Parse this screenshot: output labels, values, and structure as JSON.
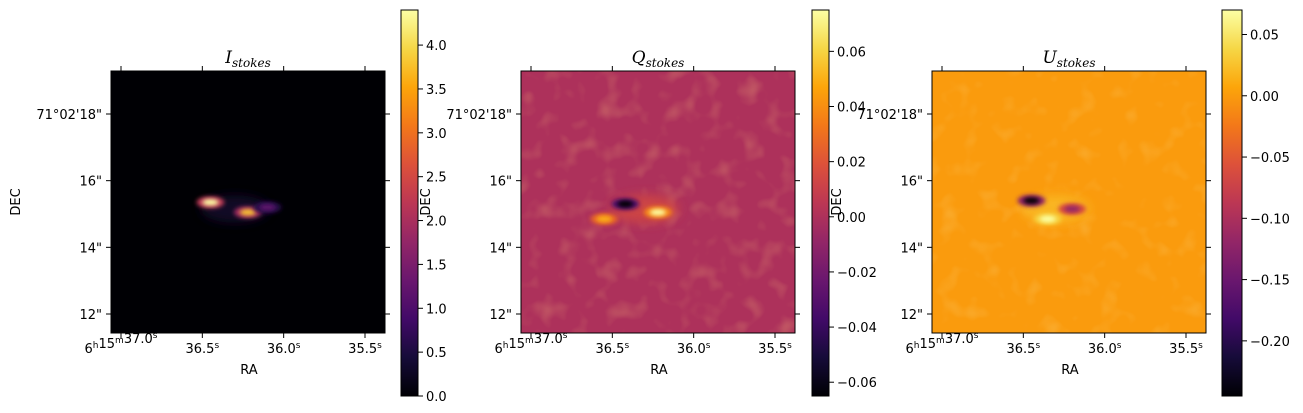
{
  "chart_data": [
    {
      "type": "heatmap",
      "title_symbol": "I",
      "title_sub": "stokes",
      "xlabel": "RA",
      "ylabel": "DEC",
      "colormap": "inferno",
      "background_value": 0.0,
      "x_ticks": [
        "6h15m37.0s",
        "36.5s",
        "36.0s",
        "35.5s"
      ],
      "y_ticks": [
        "71°02'18\"",
        "16\"",
        "14\"",
        "12\""
      ],
      "colorbar": {
        "range": [
          0.0,
          4.4
        ],
        "ticks": [
          "0.0",
          "0.5",
          "1.0",
          "1.5",
          "2.0",
          "2.5",
          "3.0",
          "3.5",
          "4.0"
        ]
      },
      "features": [
        {
          "ra_s": 36.45,
          "dec_s": 15.35,
          "peak": 4.4
        },
        {
          "ra_s": 36.22,
          "dec_s": 15.05,
          "peak": 3.8
        },
        {
          "ra_s": 36.1,
          "dec_s": 15.2,
          "peak": 1.2
        }
      ]
    },
    {
      "type": "heatmap",
      "title_symbol": "Q",
      "title_sub": "stokes",
      "xlabel": "RA",
      "ylabel": "DEC",
      "colormap": "inferno",
      "background_value": 0.0,
      "x_ticks": [
        "6h15m37.0s",
        "36.5s",
        "36.0s",
        "35.5s"
      ],
      "y_ticks": [
        "71°02'18\"",
        "16\"",
        "14\"",
        "12\""
      ],
      "colorbar": {
        "range": [
          -0.065,
          0.075
        ],
        "ticks": [
          "−0.06",
          "−0.04",
          "−0.02",
          "0.00",
          "0.02",
          "0.04",
          "0.06"
        ]
      },
      "features": [
        {
          "ra_s": 36.42,
          "dec_s": 15.3,
          "peak": -0.065
        },
        {
          "ra_s": 36.22,
          "dec_s": 15.05,
          "peak": 0.075
        },
        {
          "ra_s": 36.55,
          "dec_s": 14.85,
          "peak": 0.05
        }
      ]
    },
    {
      "type": "heatmap",
      "title_symbol": "U",
      "title_sub": "stokes",
      "xlabel": "RA",
      "ylabel": "DEC",
      "colormap": "inferno",
      "background_value": 0.0,
      "x_ticks": [
        "6h15m37.0s",
        "36.5s",
        "36.0s",
        "35.5s"
      ],
      "y_ticks": [
        "71°02'18\"",
        "16\"",
        "14\"",
        "12\""
      ],
      "colorbar": {
        "range": [
          -0.245,
          0.07
        ],
        "ticks": [
          "−0.20",
          "−0.15",
          "−0.10",
          "−0.05",
          "0.00",
          "0.05"
        ]
      },
      "features": [
        {
          "ra_s": 36.45,
          "dec_s": 15.4,
          "peak": -0.245
        },
        {
          "ra_s": 36.2,
          "dec_s": 15.15,
          "peak": -0.12
        },
        {
          "ra_s": 36.35,
          "dec_s": 14.85,
          "peak": 0.07
        }
      ]
    }
  ]
}
